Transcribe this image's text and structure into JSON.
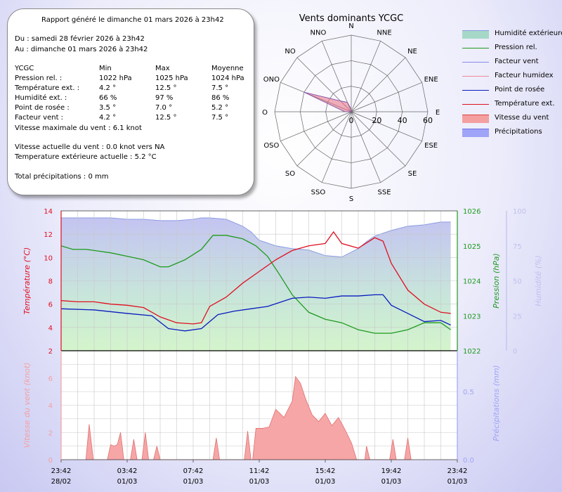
{
  "report": {
    "generated": "Rapport généré le dimanche 01 mars 2026 à 23h42",
    "from": "Du : samedi 28 février 2026 à 23h42",
    "to": "Au : dimanche 01 mars 2026 à 23h42",
    "headers": [
      "YCGC",
      "Min",
      "Max",
      "Moyenne"
    ],
    "rows": [
      {
        "label": "Pression rel. :",
        "min": "1022 hPa",
        "max": "1025 hPa",
        "avg": "1024 hPa"
      },
      {
        "label": "Température ext. :",
        "min": "4.2 °",
        "max": "12.5 °",
        "avg": "7.5 °"
      },
      {
        "label": "Humidité ext. :",
        "min": "66 %",
        "max": "97 %",
        "avg": "86 %"
      },
      {
        "label": "Point de rosée :",
        "min": "3.5 °",
        "max": "7.0 °",
        "avg": "5.2 °"
      },
      {
        "label": "Facteur vent :",
        "min": "4.2 °",
        "max": "12.5 °",
        "avg": "7.5 °"
      }
    ],
    "max_wind": "Vitesse maximale du vent : 6.1 knot",
    "current_wind": "Vitesse actuelle du vent : 0.0 knot vers  NA",
    "current_temp": "Temperature extérieure actuelle :  5.2 °C",
    "total_precip": "Total précipitations :  0 mm"
  },
  "wind_rose": {
    "title": "Vents dominants YCGC",
    "directions": [
      "N",
      "NNE",
      "NE",
      "ENE",
      "E",
      "ESE",
      "SE",
      "SSE",
      "S",
      "SSO",
      "SO",
      "OSO",
      "O",
      "ONO",
      "NO",
      "NNO"
    ],
    "rings": [
      "0",
      "20",
      "40",
      "60"
    ],
    "ring_values": [
      0,
      20,
      40,
      60
    ],
    "max": 60,
    "frequencies": [
      2,
      0,
      0,
      0,
      0,
      0,
      0,
      0,
      0,
      0,
      0,
      0,
      5,
      40,
      12,
      8
    ]
  },
  "legend": [
    {
      "label": "Humidité extérieure",
      "kind": "area",
      "color": "#a6d8c8",
      "edge": "#8a9be0"
    },
    {
      "label": "Pression rel.",
      "kind": "line",
      "color": "#1e9a1e"
    },
    {
      "label": "Facteur vent",
      "kind": "line",
      "color": "#8a8ae8"
    },
    {
      "label": "Facteur humidex",
      "kind": "line",
      "color": "#ef8a9a"
    },
    {
      "label": "Point de rosée",
      "kind": "line",
      "color": "#0a1ac0"
    },
    {
      "label": "Température ext.",
      "kind": "line",
      "color": "#e01020"
    },
    {
      "label": "Vitesse du vent",
      "kind": "area",
      "color": "#f4a0a0",
      "edge": "#e04040"
    },
    {
      "label": "Précipitations",
      "kind": "area",
      "color": "#a0a4f8",
      "edge": "#7070e0"
    }
  ],
  "chart_data": [
    {
      "type": "line",
      "title": "",
      "x_range_hours": [
        0,
        24
      ],
      "x_ticks": [
        {
          "time": "23:42",
          "date": "28/02",
          "h": 0
        },
        {
          "time": "03:42",
          "date": "01/03",
          "h": 4
        },
        {
          "time": "07:42",
          "date": "01/03",
          "h": 8
        },
        {
          "time": "11:42",
          "date": "01/03",
          "h": 12
        },
        {
          "time": "15:42",
          "date": "01/03",
          "h": 16
        },
        {
          "time": "19:42",
          "date": "01/03",
          "h": 20
        },
        {
          "time": "23:42",
          "date": "01/03",
          "h": 24
        }
      ],
      "axes": {
        "temp": {
          "label": "Température (°C)",
          "range": [
            2,
            14
          ],
          "ticks": [
            2,
            4,
            6,
            8,
            10,
            12,
            14
          ],
          "color": "#e01020"
        },
        "pressure": {
          "label": "Pression (hPa)",
          "range": [
            1022,
            1026
          ],
          "ticks": [
            1022,
            1023,
            1024,
            1025,
            1026
          ],
          "color": "#1e9a1e"
        },
        "humidity": {
          "label": "Humidité (%)",
          "range": [
            0,
            100
          ],
          "ticks": [
            0,
            25,
            50,
            75,
            100
          ],
          "color": "#c0c0ee"
        }
      },
      "series": [
        {
          "name": "Humidité extérieure",
          "axis": "humidity",
          "color": "#8a9be0",
          "points": [
            [
              0,
              95
            ],
            [
              1,
              95
            ],
            [
              2,
              95
            ],
            [
              3,
              95
            ],
            [
              4,
              94
            ],
            [
              5,
              94
            ],
            [
              6,
              93
            ],
            [
              7,
              93
            ],
            [
              8,
              94
            ],
            [
              8.5,
              95
            ],
            [
              9,
              95
            ],
            [
              10,
              94
            ],
            [
              11,
              89
            ],
            [
              11.5,
              85
            ],
            [
              12,
              79
            ],
            [
              13,
              75
            ],
            [
              14,
              73
            ],
            [
              15,
              72
            ],
            [
              16,
              68
            ],
            [
              17,
              67
            ],
            [
              18,
              73
            ],
            [
              18.5,
              78
            ],
            [
              19,
              82
            ],
            [
              20,
              86
            ],
            [
              21,
              89
            ],
            [
              22,
              90
            ],
            [
              23,
              92
            ],
            [
              23.6,
              92
            ]
          ]
        },
        {
          "name": "Pression rel.",
          "axis": "pressure",
          "color": "#1e9a1e",
          "points": [
            [
              0,
              1025
            ],
            [
              0.7,
              1024.9
            ],
            [
              1.5,
              1024.9
            ],
            [
              3,
              1024.8
            ],
            [
              4,
              1024.7
            ],
            [
              5,
              1024.6
            ],
            [
              6,
              1024.4
            ],
            [
              6.5,
              1024.4
            ],
            [
              7.5,
              1024.6
            ],
            [
              8.5,
              1024.9
            ],
            [
              9.2,
              1025.3
            ],
            [
              10,
              1025.3
            ],
            [
              11,
              1025.2
            ],
            [
              11.8,
              1025
            ],
            [
              12.5,
              1024.7
            ],
            [
              13.2,
              1024.2
            ],
            [
              14,
              1023.6
            ],
            [
              15,
              1023.1
            ],
            [
              16,
              1022.9
            ],
            [
              17,
              1022.8
            ],
            [
              18,
              1022.6
            ],
            [
              19,
              1022.5
            ],
            [
              20,
              1022.5
            ],
            [
              21,
              1022.6
            ],
            [
              22,
              1022.8
            ],
            [
              23,
              1022.8
            ],
            [
              23.6,
              1022.6
            ]
          ]
        },
        {
          "name": "Température ext.",
          "axis": "temp",
          "color": "#e01020",
          "points": [
            [
              0,
              6.3
            ],
            [
              1,
              6.2
            ],
            [
              2,
              6.2
            ],
            [
              3,
              6.0
            ],
            [
              4,
              5.9
            ],
            [
              5,
              5.7
            ],
            [
              6,
              4.9
            ],
            [
              7,
              4.4
            ],
            [
              8,
              4.3
            ],
            [
              8.5,
              4.4
            ],
            [
              9,
              5.8
            ],
            [
              10,
              6.6
            ],
            [
              11,
              7.8
            ],
            [
              12,
              8.8
            ],
            [
              13,
              9.8
            ],
            [
              14,
              10.6
            ],
            [
              15,
              11.0
            ],
            [
              16,
              11.2
            ],
            [
              16.5,
              12.2
            ],
            [
              17,
              11.2
            ],
            [
              18,
              10.8
            ],
            [
              19,
              11.7
            ],
            [
              19.5,
              11.4
            ],
            [
              20,
              9.5
            ],
            [
              21,
              7.2
            ],
            [
              22,
              6.0
            ],
            [
              23,
              5.3
            ],
            [
              23.6,
              5.2
            ]
          ]
        },
        {
          "name": "Point de rosée",
          "axis": "temp",
          "color": "#0a1ac0",
          "points": [
            [
              0,
              5.6
            ],
            [
              2,
              5.5
            ],
            [
              4,
              5.2
            ],
            [
              5.5,
              5.0
            ],
            [
              6.5,
              3.9
            ],
            [
              7.5,
              3.7
            ],
            [
              8.5,
              3.9
            ],
            [
              9.5,
              5.1
            ],
            [
              10.5,
              5.4
            ],
            [
              11.5,
              5.6
            ],
            [
              12.5,
              5.8
            ],
            [
              14,
              6.5
            ],
            [
              15,
              6.6
            ],
            [
              16,
              6.5
            ],
            [
              17,
              6.7
            ],
            [
              18,
              6.7
            ],
            [
              19,
              6.8
            ],
            [
              19.5,
              6.8
            ],
            [
              20,
              5.9
            ],
            [
              21,
              5.2
            ],
            [
              22,
              4.5
            ],
            [
              23,
              4.6
            ],
            [
              23.6,
              4.2
            ]
          ]
        }
      ]
    },
    {
      "type": "area",
      "title": "",
      "axes": {
        "wind": {
          "label": "Vitesse du vent (knot)",
          "range": [
            0,
            8
          ],
          "ticks": [
            0,
            2,
            4,
            6
          ],
          "color": "#f4a0a0"
        },
        "precip": {
          "label": "Précipitations (mm)",
          "range": [
            0,
            0.8
          ],
          "ticks": [
            0.0,
            0.5
          ],
          "color": "#a0a4f8"
        }
      },
      "series": [
        {
          "name": "Vitesse du vent",
          "axis": "wind",
          "color": "#f4a0a0",
          "points": [
            [
              1.5,
              0
            ],
            [
              1.7,
              2.6
            ],
            [
              1.95,
              0
            ],
            [
              2.8,
              0
            ],
            [
              3.0,
              1.1
            ],
            [
              3.2,
              1.0
            ],
            [
              3.4,
              1.1
            ],
            [
              3.6,
              2
            ],
            [
              3.8,
              0
            ],
            [
              4.2,
              0
            ],
            [
              4.4,
              1.5
            ],
            [
              4.6,
              0
            ],
            [
              4.9,
              0
            ],
            [
              5.1,
              2
            ],
            [
              5.3,
              0
            ],
            [
              5.6,
              0
            ],
            [
              5.8,
              1
            ],
            [
              6.0,
              0
            ],
            [
              9.2,
              0
            ],
            [
              9.4,
              1.6
            ],
            [
              9.6,
              0
            ],
            [
              11.1,
              0
            ],
            [
              11.3,
              2.1
            ],
            [
              11.5,
              0
            ],
            [
              11.6,
              0
            ],
            [
              11.8,
              2.3
            ],
            [
              12.2,
              2.3
            ],
            [
              12.6,
              2.4
            ],
            [
              13,
              3.7
            ],
            [
              13.5,
              3.1
            ],
            [
              14,
              4.3
            ],
            [
              14.2,
              6.1
            ],
            [
              14.5,
              5.6
            ],
            [
              14.8,
              4.5
            ],
            [
              15.2,
              3.3
            ],
            [
              15.6,
              2.8
            ],
            [
              16,
              3.4
            ],
            [
              16.4,
              2.5
            ],
            [
              16.8,
              3.1
            ],
            [
              17.2,
              2.2
            ],
            [
              17.6,
              1.2
            ],
            [
              17.9,
              0
            ],
            [
              18.4,
              0
            ],
            [
              18.5,
              1.0
            ],
            [
              18.7,
              0
            ],
            [
              19.9,
              0
            ],
            [
              20.1,
              1.5
            ],
            [
              20.3,
              0
            ],
            [
              20.8,
              0
            ],
            [
              21.0,
              1.6
            ],
            [
              21.2,
              0
            ]
          ]
        },
        {
          "name": "Précipitations",
          "axis": "precip",
          "color": "#a0a4f8",
          "points": []
        }
      ]
    }
  ]
}
